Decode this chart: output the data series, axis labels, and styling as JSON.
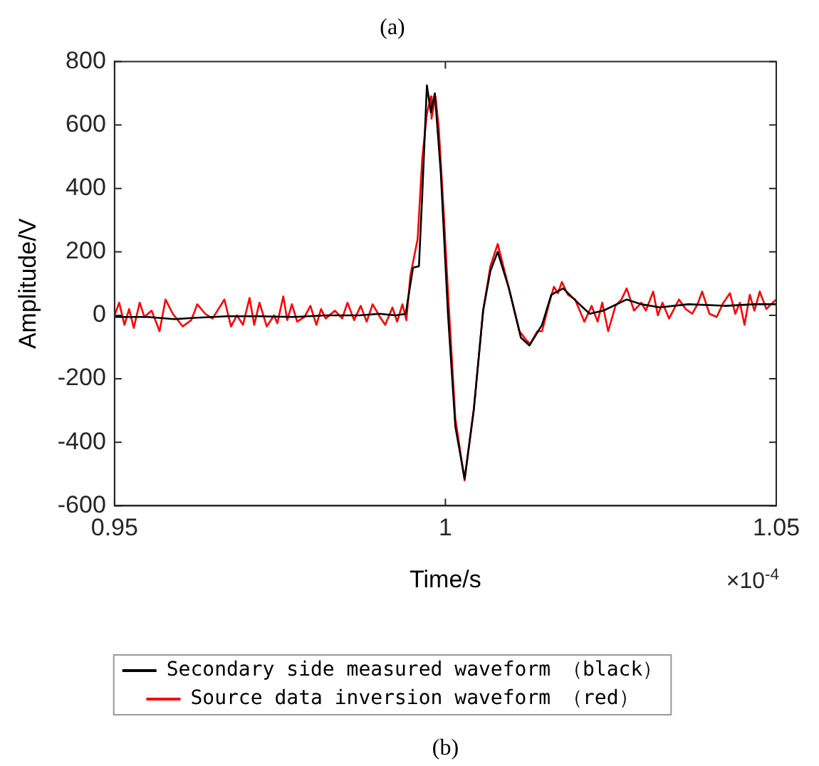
{
  "chart_data": {
    "type": "line",
    "title": "(a)",
    "xlabel": "Time/s",
    "ylabel": "Amplitude/V",
    "annotations": [
      "×10$^{-4}$",
      "(b)"
    ],
    "xlim": [
      0.95,
      1.05
    ],
    "xticks": [
      0.95,
      1,
      1.05
    ],
    "ylim": [
      -600,
      800
    ],
    "yticks": [
      -600,
      -400,
      -200,
      0,
      200,
      400,
      600,
      800
    ],
    "grid": false,
    "legend": "bottom",
    "marker": "none",
    "line_style": "solid",
    "series": [
      {
        "name": "Secondary side measured waveform （black）",
        "color": "#000000",
        "x": [
          0.95,
          0.955,
          0.959,
          0.962,
          0.967,
          0.972,
          0.977,
          0.982,
          0.987,
          0.99,
          0.9925,
          0.994,
          0.9951,
          0.996,
          0.9965,
          0.9972,
          0.9978,
          0.9984,
          0.9993,
          1.0004,
          1.0015,
          1.0029,
          1.0043,
          1.0057,
          1.0068,
          1.0079,
          1.0096,
          1.0114,
          1.0127,
          1.0146,
          1.016,
          1.0178,
          1.02,
          1.0218,
          1.0239,
          1.0274,
          1.0296,
          1.0324,
          1.0367,
          1.0424,
          1.0467,
          1.05
        ],
        "values": [
          -5,
          -5,
          -12,
          -8,
          -3,
          -3,
          -5,
          0,
          0,
          5,
          0,
          5,
          150,
          155,
          380,
          725,
          640,
          700,
          450,
          0,
          -350,
          -515,
          -295,
          15,
          140,
          200,
          85,
          -70,
          -95,
          -30,
          65,
          85,
          40,
          5,
          15,
          50,
          35,
          25,
          35,
          30,
          35,
          35
        ]
      },
      {
        "name": "Source data inversion waveform （red）",
        "color": "#ff0000",
        "x": [
          0.95,
          0.9507,
          0.9515,
          0.9522,
          0.9529,
          0.9538,
          0.9545,
          0.9556,
          0.9568,
          0.9577,
          0.9588,
          0.9603,
          0.9616,
          0.9625,
          0.9637,
          0.9648,
          0.9666,
          0.9676,
          0.9685,
          0.9694,
          0.9704,
          0.9711,
          0.9719,
          0.973,
          0.9741,
          0.9746,
          0.9755,
          0.9761,
          0.9768,
          0.9776,
          0.9787,
          0.9796,
          0.9805,
          0.9812,
          0.9819,
          0.9833,
          0.9844,
          0.9852,
          0.9862,
          0.9872,
          0.9881,
          0.989,
          0.9901,
          0.9909,
          0.992,
          0.9927,
          0.9935,
          0.9941,
          0.9947,
          0.9958,
          0.9965,
          0.9972,
          0.9978,
          0.9979,
          0.9985,
          0.999,
          0.9997,
          1.0004,
          1.0015,
          1.0029,
          1.0043,
          1.0057,
          1.0068,
          1.0079,
          1.0096,
          1.0112,
          1.0121,
          1.0128,
          1.0139,
          1.0146,
          1.0157,
          1.0164,
          1.017,
          1.0176,
          1.0185,
          1.0196,
          1.021,
          1.0221,
          1.023,
          1.0237,
          1.0246,
          1.0257,
          1.0266,
          1.0274,
          1.0285,
          1.0296,
          1.0303,
          1.0314,
          1.0321,
          1.0328,
          1.0338,
          1.0353,
          1.0363,
          1.0373,
          1.0381,
          1.0388,
          1.0399,
          1.041,
          1.042,
          1.043,
          1.0438,
          1.0445,
          1.0452,
          1.046,
          1.0467,
          1.0475,
          1.0485,
          1.0492,
          1.05
        ],
        "values": [
          0,
          40,
          -30,
          20,
          -40,
          40,
          -5,
          15,
          -50,
          50,
          5,
          -35,
          -15,
          35,
          5,
          -10,
          50,
          -35,
          0,
          -30,
          55,
          -30,
          40,
          -35,
          0,
          -25,
          60,
          -15,
          35,
          -20,
          -5,
          30,
          -30,
          20,
          -10,
          15,
          -10,
          40,
          -15,
          30,
          -20,
          35,
          -5,
          -30,
          25,
          -20,
          35,
          -15,
          125,
          240,
          495,
          635,
          690,
          620,
          690,
          590,
          340,
          70,
          -325,
          -520,
          -295,
          15,
          155,
          225,
          85,
          -50,
          -75,
          -90,
          -50,
          -50,
          40,
          90,
          70,
          105,
          65,
          50,
          -20,
          30,
          -20,
          40,
          -50,
          30,
          50,
          85,
          15,
          40,
          15,
          75,
          0,
          40,
          -10,
          50,
          20,
          5,
          35,
          75,
          5,
          -5,
          40,
          70,
          5,
          40,
          -30,
          65,
          15,
          75,
          20,
          35,
          50
        ]
      }
    ]
  }
}
